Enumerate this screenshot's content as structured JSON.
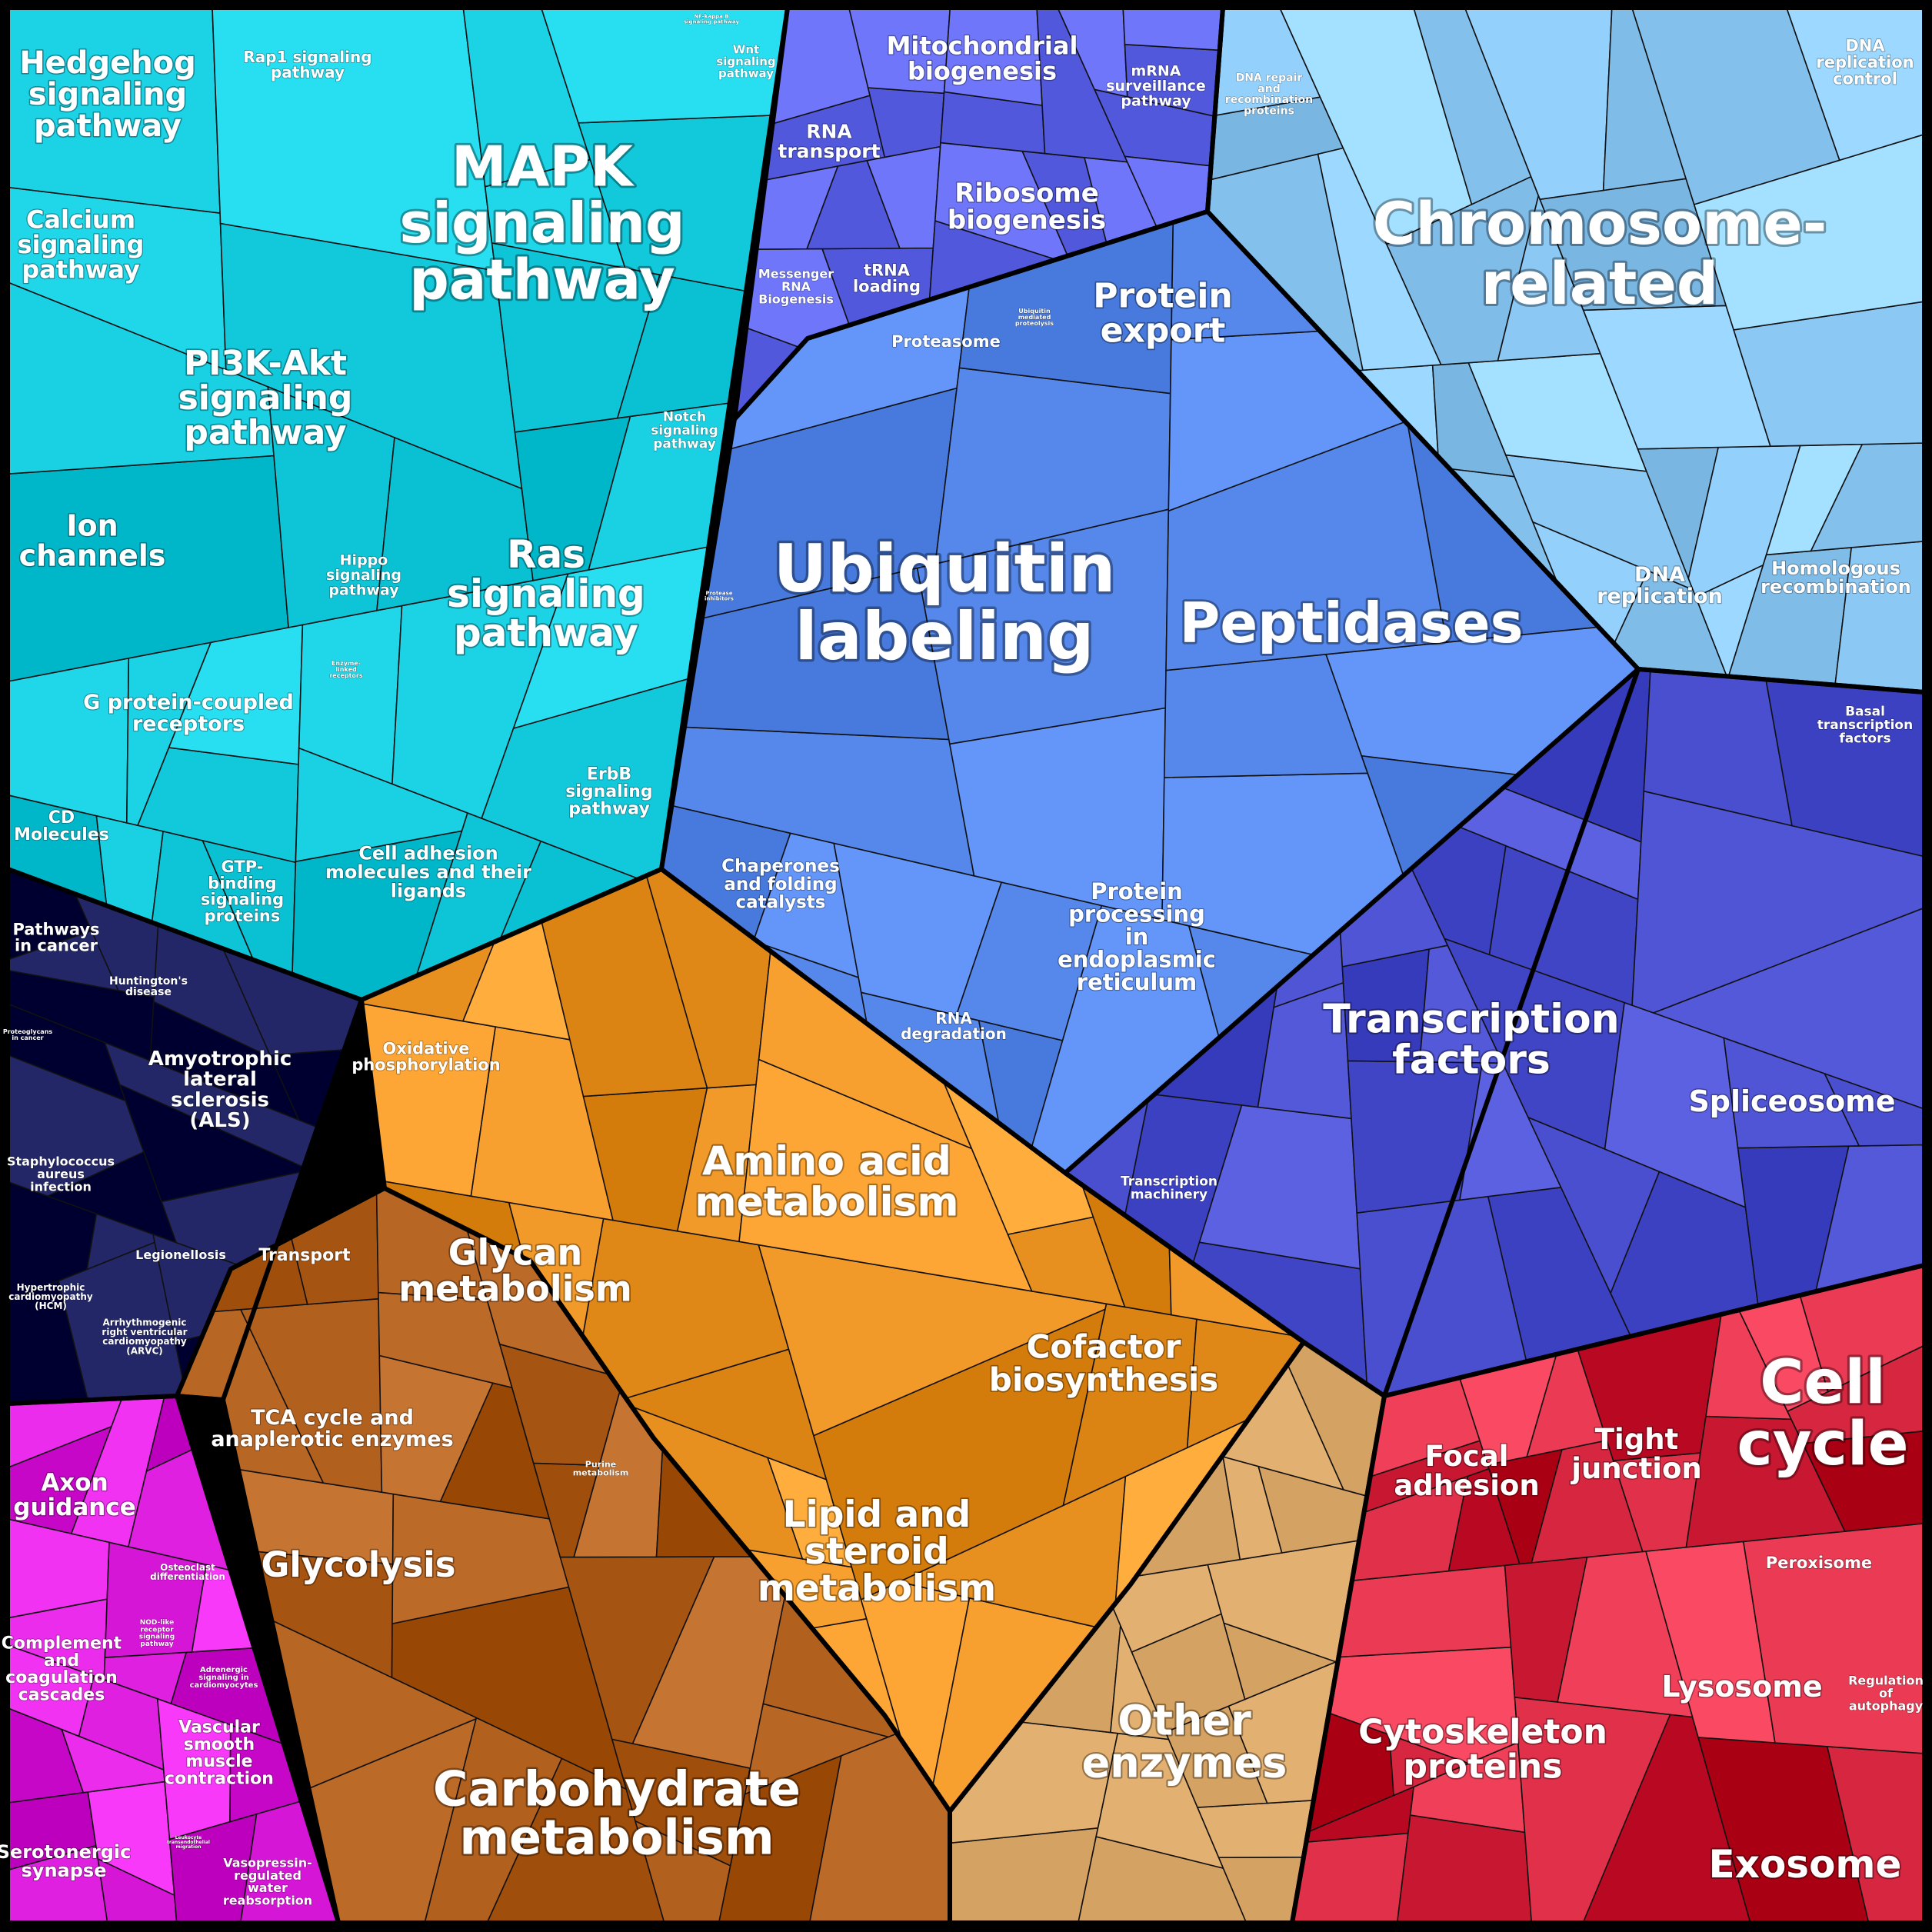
{
  "colors": {
    "cyan_group": "#12C9DC",
    "blue_group": "#5B8EF0",
    "indigo_group": "#4A4FD0",
    "sky_group": "#8CC8F4",
    "orange_group": "#E8901F",
    "brown_group": "#B2601E",
    "tan_group": "#E2B070",
    "red_group": "#E0304A",
    "dark_group": "#444",
    "magenta_group": "#E020E0"
  },
  "labels": {
    "hedgehog": "Hedgehog signaling pathway",
    "rap1": "Rap1 signaling pathway",
    "nfkb": "NF-kappa B signaling pathway",
    "wnt": "Wnt signaling pathway",
    "mapk": "MAPK signaling pathway",
    "calcium": "Calcium signaling pathway",
    "pi3k": "PI3K-Akt signaling pathway",
    "notch": "Notch signaling pathway",
    "ion": "Ion channels",
    "hippo": "Hippo signaling pathway",
    "ras": "Ras signaling pathway",
    "enzyme_linked": "Enzyme-linked receptors",
    "gpcr": "G protein-coupled receptors",
    "erbb": "ErbB signaling pathway",
    "cd": "CD Molecules",
    "gtp": "GTP-binding signaling proteins",
    "cell_adhesion_mol": "Cell adhesion molecules and their ligands",
    "mito": "Mitochondrial biogenesis",
    "mrna_surv": "mRNA surveillance pathway",
    "rna_transport": "RNA transport",
    "ribosome": "Ribosome biogenesis",
    "messenger": "Messenger RNA Biogenesis",
    "trna": "tRNA loading",
    "proteasome": "Proteasome",
    "ubiq_med": "Ubiquitin mediated proteolysis",
    "protein_export": "Protein export",
    "protease_inh": "Protease inhibitors",
    "ubiquitin": "Ubiquitin labeling",
    "peptidases": "Peptidases",
    "chaperones": "Chaperones and folding catalysts",
    "protein_er": "Protein processing in endoplasmic reticulum",
    "rna_deg": "RNA degradation",
    "dna_repair": "DNA repair and recombination proteins",
    "dna_rep_ctrl": "DNA replication control",
    "chromosome": "Chromosome-related",
    "dna_rep": "DNA replication",
    "homologous": "Homologous recombination",
    "basal": "Basal transcription factors",
    "tf": "Transcription factors",
    "spliceosome": "Spliceosome",
    "trans_machinery": "Transcription machinery",
    "pathways_cancer": "Pathways in cancer",
    "huntington": "Huntington's disease",
    "proteoglycans": "Proteoglycans in cancer",
    "als": "Amyotrophic lateral sclerosis (ALS)",
    "staph": "Staphylococcus aureus infection",
    "legionellosis": "Legionellosis",
    "hcm": "Hypertrophic cardiomyopathy (HCM)",
    "arvc": "Arrhythmogenic right ventricular cardiomyopathy (ARVC)",
    "oxphos": "Oxidative phosphorylation",
    "amino": "Amino acid metabolism",
    "transport": "Transport",
    "glycan": "Glycan metabolism",
    "cofactor": "Cofactor biosynthesis",
    "tca": "TCA cycle and anaplerotic enzymes",
    "purine": "Purine metabolism",
    "lipid": "Lipid and steroid metabolism",
    "glycolysis": "Glycolysis",
    "other_enz": "Other enzymes",
    "carb": "Carbohydrate metabolism",
    "axon": "Axon guidance",
    "osteoclast": "Osteoclast differentiation",
    "complement": "Complement and coagulation cascades",
    "nod": "NOD-like receptor signaling pathway",
    "adrenergic": "Adrenergic signaling in cardiomyocytes",
    "vascular": "Vascular smooth muscle contraction",
    "serotonergic": "Serotonergic synapse",
    "leukocyte": "Leukocyte transendothelial migration",
    "vasopressin": "Vasopressin-regulated water reabsorption",
    "focal": "Focal adhesion",
    "tight": "Tight junction",
    "cellcycle": "Cell cycle",
    "peroxisome": "Peroxisome",
    "lysosome": "Lysosome",
    "autophagy": "Regulation of autophagy",
    "cytoskeleton": "Cytoskeleton proteins",
    "exosome": "Exosome"
  }
}
